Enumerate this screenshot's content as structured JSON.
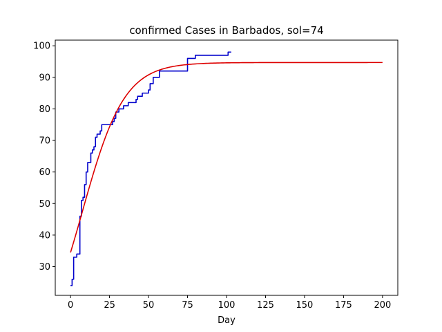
{
  "chart_data": {
    "type": "line",
    "title": "confirmed Cases in Barbados, sol=74",
    "xlabel": "Day",
    "ylabel": "",
    "xlim": [
      -9.8,
      209.8
    ],
    "ylim": [
      20.9,
      101.8
    ],
    "xticks": [
      0,
      25,
      50,
      75,
      100,
      125,
      150,
      175,
      200
    ],
    "yticks": [
      30,
      40,
      50,
      60,
      70,
      80,
      90,
      100
    ],
    "grid": false,
    "series": [
      {
        "color": "#0000cc",
        "step": true,
        "x": [
          0,
          1,
          2,
          3,
          4,
          5,
          6,
          7,
          8,
          9,
          10,
          11,
          12,
          13,
          14,
          15,
          16,
          17,
          18,
          19,
          20,
          21,
          22,
          23,
          24,
          25,
          26,
          27,
          28,
          29,
          30,
          31,
          32,
          33,
          34,
          35,
          36,
          37,
          38,
          39,
          40,
          41,
          42,
          43,
          44,
          45,
          46,
          47,
          48,
          49,
          50,
          51,
          52,
          53,
          54,
          55,
          56,
          57,
          58,
          59,
          60,
          61,
          62,
          63,
          64,
          65,
          66,
          67,
          68,
          69,
          70,
          71,
          72,
          73,
          74,
          75,
          76,
          77,
          78,
          79,
          80,
          81,
          82,
          83,
          84,
          85,
          86,
          87,
          88,
          89,
          90,
          91,
          92,
          93,
          94,
          95,
          96,
          97,
          98,
          99,
          100,
          101,
          102,
          103
        ],
        "y": [
          24,
          26,
          33,
          33,
          34,
          34,
          46,
          51,
          52,
          56,
          60,
          63,
          63,
          66,
          67,
          68,
          71,
          72,
          72,
          73,
          75,
          75,
          75,
          75,
          75,
          75,
          75,
          76,
          77,
          79,
          79,
          80,
          80,
          80,
          81,
          81,
          81,
          82,
          82,
          82,
          82,
          82,
          83,
          84,
          84,
          84,
          85,
          85,
          85,
          85,
          86,
          88,
          88,
          90,
          90,
          90,
          90,
          92,
          92,
          92,
          92,
          92,
          92,
          92,
          92,
          92,
          92,
          92,
          92,
          92,
          92,
          92,
          92,
          92,
          92,
          96,
          96,
          96,
          96,
          96,
          97,
          97,
          97,
          97,
          97,
          97,
          97,
          97,
          97,
          97,
          97,
          97,
          97,
          97,
          97,
          97,
          97,
          97,
          97,
          97,
          97,
          98,
          98,
          98
        ]
      },
      {
        "color": "#dd0000",
        "step": false,
        "model": {
          "type": "logistic",
          "K": 94.7,
          "r": 0.074,
          "y0": 34.5
        },
        "x_range": [
          0,
          200
        ]
      }
    ]
  }
}
